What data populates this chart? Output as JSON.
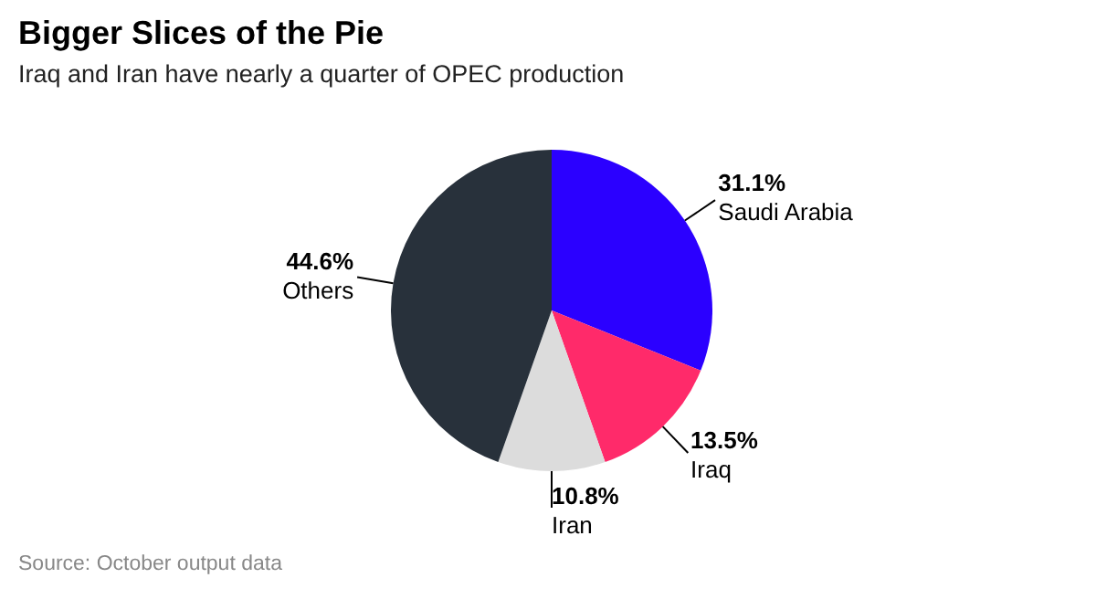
{
  "chart_data": {
    "type": "pie",
    "title": "Bigger Slices of the Pie",
    "subtitle": "Iraq and Iran have nearly a quarter of OPEC production",
    "categories": [
      "Saudi Arabia",
      "Iraq",
      "Iran",
      "Others"
    ],
    "values": [
      31.1,
      13.5,
      10.8,
      44.6
    ],
    "colors": [
      "#2b00ff",
      "#ff2a6a",
      "#dcdcdc",
      "#28313b"
    ],
    "value_labels": [
      "31.1%",
      "13.5%",
      "10.8%",
      "44.6%"
    ],
    "annotations": [
      "Source: October output data"
    ]
  }
}
